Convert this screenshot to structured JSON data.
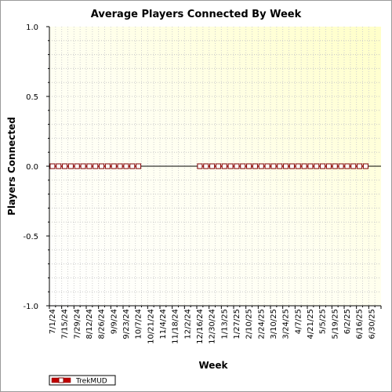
{
  "chart_data": {
    "type": "line",
    "title": "Average Players Connected By Week",
    "xlabel": "Week",
    "ylabel": "Players Connected",
    "ylim": [
      -1.0,
      1.0
    ],
    "y_ticks": [
      "1.0",
      "0.5",
      "0.0",
      "-0.5",
      "-1.0"
    ],
    "y_tick_values": [
      1.0,
      0.5,
      0.0,
      -0.5,
      -1.0
    ],
    "x_tick_labels": [
      "7/1/24",
      "7/15/24",
      "7/29/24",
      "8/12/24",
      "8/26/24",
      "9/9/24",
      "9/23/24",
      "10/7/24",
      "10/21/24",
      "11/4/24",
      "11/18/24",
      "12/2/24",
      "12/16/24",
      "12/30/24",
      "1/13/25",
      "1/27/25",
      "2/10/25",
      "2/24/25",
      "3/10/25",
      "3/24/25",
      "4/7/25",
      "4/21/25",
      "5/5/25",
      "5/19/25",
      "6/2/25",
      "6/16/25",
      "6/30/25"
    ],
    "series": [
      {
        "name": "TrekMUD",
        "color": "#c00000",
        "segments": [
          {
            "start_week_index": 0,
            "count": 15,
            "value": 0.0
          },
          {
            "start_week_index": 24,
            "count": 28,
            "value": 0.0
          }
        ]
      }
    ],
    "grid": true,
    "legend_position": "bottom-left",
    "plot_background": "#fffde0"
  }
}
